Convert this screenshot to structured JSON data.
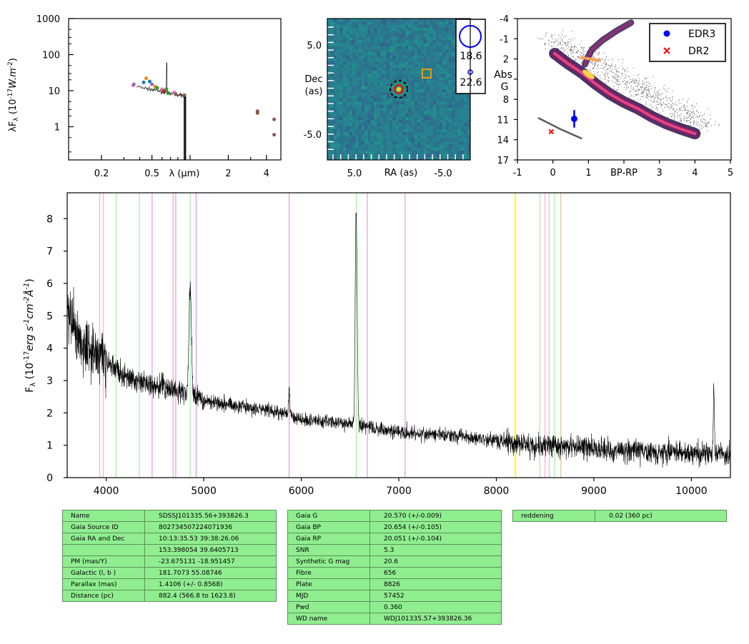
{
  "colors": {
    "spectrum": "#000000",
    "table_bg": "#90ee90",
    "table_border": "#5a8f5a",
    "edr3": "#0000ff",
    "dr2": "#ff0000",
    "aperture": "#0000ff",
    "box": "#f0a000",
    "ring": "#000000",
    "target": "#ff0000"
  },
  "chart_data": [
    {
      "type": "scatter",
      "xlabel": "λ (μm)",
      "ylabel": "λF_λ (10^-17 W.m^-2)",
      "xscale": "log",
      "yscale": "log",
      "xlim": [
        0.11,
        5.2
      ],
      "ylim": [
        0.12,
        1000
      ],
      "xticks": [
        "0.2",
        "0.5",
        "λ (μm)",
        "2",
        "4"
      ],
      "yticks": [
        "1000",
        "100",
        "10",
        "1"
      ],
      "photometry": [
        {
          "x": 0.355,
          "y": 14,
          "color": "#e377c2"
        },
        {
          "x": 0.36,
          "y": 15,
          "color": "#9467bd"
        },
        {
          "x": 0.43,
          "y": 17,
          "color": "#1f77b4"
        },
        {
          "x": 0.45,
          "y": 22,
          "color": "#ff7f0e"
        },
        {
          "x": 0.48,
          "y": 18,
          "color": "#1f77b4"
        },
        {
          "x": 0.5,
          "y": 15,
          "color": "#9467bd"
        },
        {
          "x": 0.53,
          "y": 13,
          "color": "#ff7f0e"
        },
        {
          "x": 0.55,
          "y": 12,
          "color": "#2ca02c"
        },
        {
          "x": 0.6,
          "y": 11,
          "color": "#e377c2"
        },
        {
          "x": 0.62,
          "y": 10,
          "color": "#d62728"
        },
        {
          "x": 0.65,
          "y": 11,
          "color": "#2ca02c"
        },
        {
          "x": 0.67,
          "y": 8.5,
          "color": "#2ca02c"
        },
        {
          "x": 0.75,
          "y": 9,
          "color": "#e377c2"
        },
        {
          "x": 0.77,
          "y": 8,
          "color": "#8c564b"
        },
        {
          "x": 0.9,
          "y": 7.5,
          "color": "#8c564b"
        },
        {
          "x": 3.4,
          "y": 2.7,
          "color": "#8c564b"
        },
        {
          "x": 3.4,
          "y": 2.4,
          "color": "#8c564b"
        },
        {
          "x": 4.6,
          "y": 1.6,
          "color": "#8c564b"
        },
        {
          "x": 4.6,
          "y": 0.6,
          "color": "#8c564b"
        }
      ]
    },
    {
      "type": "heatmap",
      "xlabel": "RA (as)",
      "ylabel": "Dec\n(as)",
      "xlim": [
        9,
        -9
      ],
      "ylim": [
        -9,
        9
      ],
      "xticks": [
        "5.0",
        "-5.0"
      ],
      "yticks": [
        "5.0",
        "-5.0"
      ],
      "legend": [
        {
          "label": "18.6",
          "marker": "large-circle"
        },
        {
          "label": "22.6",
          "marker": "small-circle"
        }
      ],
      "sources": [
        {
          "ra": 0,
          "dec": 0,
          "marker": "target"
        },
        {
          "ra": -3.5,
          "dec": 2,
          "marker": "square"
        }
      ]
    },
    {
      "type": "scatter",
      "xlabel": "BP-RP",
      "ylabel": "Abs\nG",
      "xlim": [
        -1,
        5
      ],
      "ylim": [
        17,
        -4
      ],
      "xticks": [
        "-1",
        "0",
        "1",
        "BP-RP",
        "3",
        "4",
        "5"
      ],
      "yticks": [
        "-4",
        "-1",
        "2",
        "5",
        "8",
        "11",
        "14",
        "17"
      ],
      "legend": [
        "EDR3",
        "DR2"
      ],
      "points": [
        {
          "series": "EDR3",
          "x": 0.6,
          "y": 10.9,
          "yerr": 1.3
        },
        {
          "series": "DR2",
          "x": -0.05,
          "y": 12.8
        }
      ]
    },
    {
      "type": "line",
      "xlabel": "",
      "ylabel": "F_λ (10^-17 erg s^-1 cm^-2 Å^-1)",
      "xlim": [
        3600,
        10400
      ],
      "ylim": [
        0,
        8.8
      ],
      "xticks": [
        4000,
        5000,
        6000,
        7000,
        8000,
        9000,
        10000
      ],
      "yticks": [
        0,
        1,
        2,
        3,
        4,
        5,
        6,
        7,
        8
      ],
      "continuum": [
        [
          3600,
          5.2
        ],
        [
          3700,
          4.4
        ],
        [
          3800,
          4.1
        ],
        [
          3900,
          3.9
        ],
        [
          4000,
          3.6
        ],
        [
          4200,
          3.1
        ],
        [
          4400,
          2.9
        ],
        [
          4600,
          2.8
        ],
        [
          4800,
          2.6
        ],
        [
          5000,
          2.4
        ],
        [
          5400,
          2.2
        ],
        [
          5800,
          2.0
        ],
        [
          6000,
          1.8
        ],
        [
          6400,
          1.7
        ],
        [
          6600,
          1.6
        ],
        [
          6800,
          1.5
        ],
        [
          7200,
          1.35
        ],
        [
          7600,
          1.3
        ],
        [
          8000,
          1.15
        ],
        [
          8400,
          1.0
        ],
        [
          8800,
          0.95
        ],
        [
          9200,
          0.85
        ],
        [
          9600,
          0.8
        ],
        [
          10000,
          0.75
        ],
        [
          10400,
          0.7
        ]
      ],
      "emission": [
        {
          "x": 4861,
          "h": 3.4,
          "w": 18
        },
        {
          "x": 5876,
          "h": 0.9,
          "w": 10
        },
        {
          "x": 6563,
          "h": 6.7,
          "w": 14
        },
        {
          "x": 10230,
          "h": 2.0,
          "w": 8
        }
      ],
      "lines": [
        {
          "x": 3934,
          "color": "#ff9ec8"
        },
        {
          "x": 3969,
          "color": "#ff9ec8"
        },
        {
          "x": 4101,
          "color": "#90ee90"
        },
        {
          "x": 4340,
          "color": "#90ee90"
        },
        {
          "x": 4471,
          "color": "#dd88dd"
        },
        {
          "x": 4686,
          "color": "#dd88dd"
        },
        {
          "x": 4713,
          "color": "#dd88dd"
        },
        {
          "x": 4861,
          "color": "#90ee90"
        },
        {
          "x": 4922,
          "color": "#dd88dd"
        },
        {
          "x": 5876,
          "color": "#dd88dd"
        },
        {
          "x": 6563,
          "color": "#90ee90"
        },
        {
          "x": 6678,
          "color": "#dd88dd"
        },
        {
          "x": 7065,
          "color": "#dd88dd"
        },
        {
          "x": 8195,
          "color": "#ffff00"
        },
        {
          "x": 8446,
          "color": "#90ee90"
        },
        {
          "x": 8498,
          "color": "#ff9ec8"
        },
        {
          "x": 8542,
          "color": "#ff9ec8"
        },
        {
          "x": 8598,
          "color": "#90ee90"
        },
        {
          "x": 8662,
          "color": "#d2b48c"
        }
      ]
    }
  ],
  "tables": {
    "left": [
      [
        "Name",
        "SDSSJ101335.56+393826.3"
      ],
      [
        "Gaia Source ID",
        "802734507224071936"
      ],
      [
        "Gaia RA and Dec",
        "10:13:35.53    39:38:26.06"
      ],
      [
        "",
        "153.398054    39.6405713"
      ],
      [
        "PM (mas/Y)",
        "-23.675131    -18.951457"
      ],
      [
        "Galactic (l, b )",
        "181.7073    55.08746"
      ],
      [
        "Parallax (mas)",
        "1.4106 (+/- 0.8568)"
      ],
      [
        "Distance (pc)",
        "882.4 (566.8 to 1623.8)"
      ]
    ],
    "middle": [
      [
        "Gaia G",
        "20.570 (+/-0.009)"
      ],
      [
        "Gaia BP",
        "20.654 (+/-0.105)"
      ],
      [
        "Gaia RP",
        "20.051 (+/-0.104)"
      ],
      [
        "SNR",
        "5.3"
      ],
      [
        "Synthetic G mag",
        "20.6"
      ],
      [
        "Fibre",
        "656"
      ],
      [
        "Plate",
        "8826"
      ],
      [
        "MJD",
        "57452"
      ],
      [
        "Pwd",
        "0.360"
      ],
      [
        "WD name",
        "WDJ101335.57+393826.36"
      ]
    ],
    "right": [
      [
        "reddening",
        "0.02 (360 pc)"
      ]
    ]
  }
}
